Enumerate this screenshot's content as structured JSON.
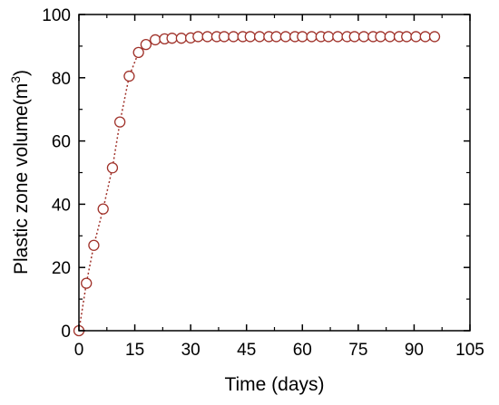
{
  "chart_data": {
    "type": "line",
    "xlabel": "Time (days)",
    "ylabel_main": "Plastic zone volume(m",
    "ylabel_sup": "3",
    "ylabel_close": ")",
    "xlim": [
      0,
      105
    ],
    "ylim": [
      0,
      100
    ],
    "xticks": [
      "0",
      "15",
      "30",
      "45",
      "60",
      "75",
      "90",
      "105"
    ],
    "yticks": [
      "0",
      "20",
      "40",
      "60",
      "80",
      "100"
    ],
    "grid": false,
    "series": [
      {
        "marker": "open-circle",
        "line_style": "dotted",
        "color": "#a0322a",
        "x": [
          0,
          2,
          4,
          6.5,
          9,
          11,
          13.5,
          16,
          18,
          20.5,
          23,
          25,
          27.5,
          30,
          32,
          34.5,
          37,
          39,
          41.5,
          44,
          46,
          48.5,
          51,
          53,
          55.5,
          58,
          60,
          62.5,
          65,
          67,
          69.5,
          72,
          74,
          76.5,
          79,
          81,
          83.5,
          86,
          88,
          90.5,
          93,
          95.5
        ],
        "y": [
          0,
          15,
          27,
          38.5,
          51.5,
          66,
          80.5,
          88,
          90.5,
          92,
          92.3,
          92.5,
          92.5,
          92.6,
          93,
          93,
          93,
          93,
          93,
          93,
          93,
          93,
          93,
          93,
          93,
          93,
          93,
          93,
          93,
          93,
          93,
          93,
          93,
          93,
          93,
          93,
          93,
          93,
          93,
          93,
          93,
          93
        ]
      }
    ]
  }
}
